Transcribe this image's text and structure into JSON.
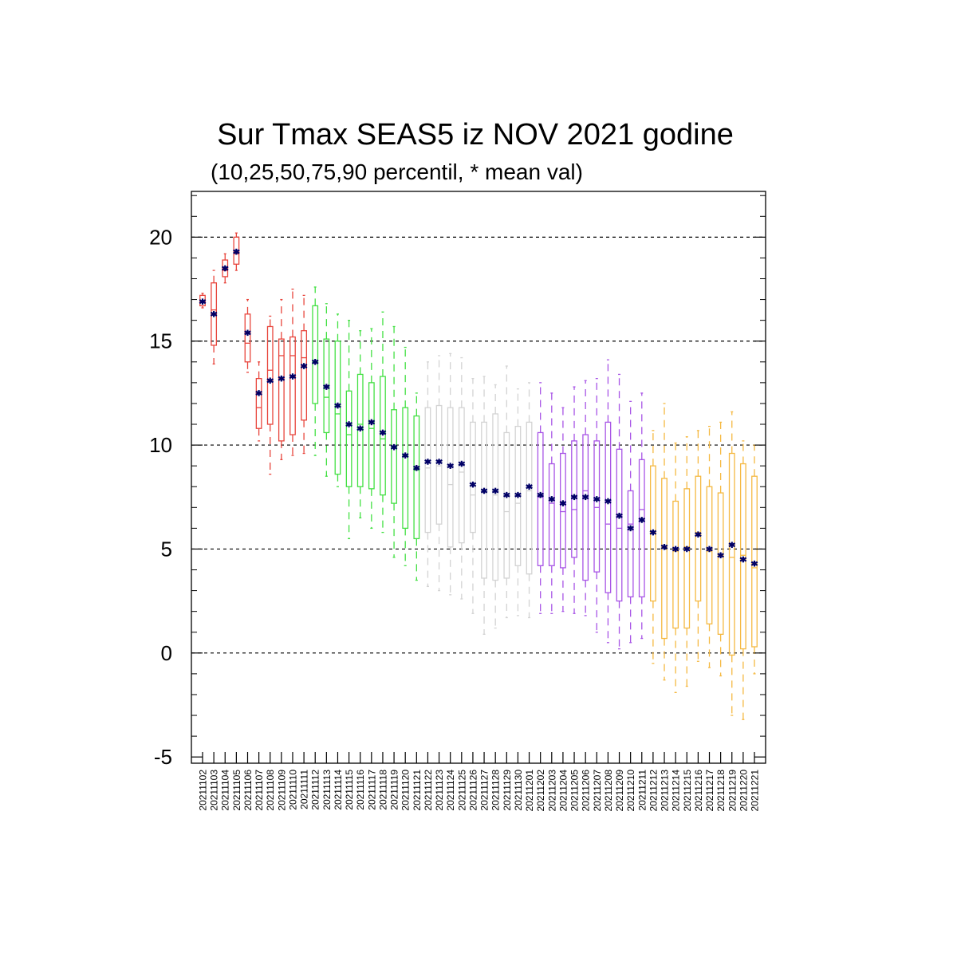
{
  "chart_data": {
    "type": "box",
    "title": "Sur Tmax SEAS5 iz NOV 2021 godine",
    "subtitle": "(10,25,50,75,90 percentil, * mean val)",
    "ylim": [
      -5.3,
      22.2
    ],
    "yticks": [
      20,
      15,
      10,
      5,
      0,
      -5
    ],
    "grid": "horizontal dashed at major ticks",
    "month_colors": {
      "2021-11-02..2021-11-11": "#e8453c",
      "2021-11-12..2021-11-21": "#43e043",
      "2021-11-22..2021-12-01": "#d3d3d3",
      "2021-12-02..2021-12-11": "#a855e6",
      "2021-12-12..2021-12-21": "#f5b942"
    },
    "mean_marker_color": "#000066",
    "categories": [
      "20211102",
      "20211103",
      "20211104",
      "20211105",
      "20211106",
      "20211107",
      "20211108",
      "20211109",
      "20211110",
      "20211111",
      "20211112",
      "20211113",
      "20211114",
      "20211115",
      "20211116",
      "20211117",
      "20211118",
      "20211119",
      "20211120",
      "20211121",
      "20211122",
      "20211123",
      "20211124",
      "20211125",
      "20211126",
      "20211127",
      "20211128",
      "20211129",
      "20211130",
      "20211201",
      "20211202",
      "20211203",
      "20211204",
      "20211205",
      "20211206",
      "20211207",
      "20211208",
      "20211209",
      "20211210",
      "20211211",
      "20211212",
      "20211213",
      "20211214",
      "20211215",
      "20211216",
      "20211217",
      "20211218",
      "20211219",
      "20211220",
      "20211221"
    ],
    "p10": [
      16.6,
      13.9,
      17.8,
      18.4,
      13.5,
      10.2,
      8.6,
      9.3,
      9.5,
      9.6,
      9.5,
      8.5,
      8.0,
      5.5,
      6.5,
      6.0,
      5.8,
      4.6,
      4.2,
      3.5,
      3.2,
      3.0,
      2.8,
      2.6,
      1.9,
      0.9,
      1.2,
      1.7,
      1.8,
      1.7,
      1.9,
      1.9,
      2.0,
      1.9,
      1.8,
      1.0,
      0.5,
      0.2,
      0.5,
      0.7,
      -0.5,
      -1.3,
      -1.9,
      -1.6,
      -0.4,
      -0.7,
      -1.1,
      -3.0,
      -3.2,
      -1.0
    ],
    "p25": [
      16.7,
      14.8,
      18.1,
      18.7,
      14.0,
      10.8,
      11.0,
      10.2,
      10.5,
      11.2,
      12.0,
      10.6,
      8.6,
      8.0,
      8.0,
      7.9,
      7.6,
      7.2,
      6.0,
      5.5,
      5.8,
      6.2,
      5.1,
      5.3,
      5.8,
      3.6,
      3.5,
      3.6,
      4.2,
      3.8,
      4.2,
      4.2,
      4.1,
      4.6,
      3.5,
      3.9,
      2.9,
      2.5,
      2.7,
      2.7,
      2.5,
      0.7,
      1.2,
      1.2,
      2.5,
      1.4,
      0.9,
      -0.1,
      0.2,
      0.3
    ],
    "p50": [
      16.9,
      16.5,
      18.4,
      19.2,
      14.9,
      11.8,
      13.6,
      14.3,
      14.3,
      14.2,
      14.0,
      12.3,
      11.5,
      10.5,
      11.0,
      10.8,
      10.3,
      9.9,
      9.5,
      8.8,
      8.9,
      9.0,
      8.1,
      8.7,
      7.6,
      7.7,
      7.6,
      6.8,
      7.2,
      7.8,
      7.5,
      7.2,
      6.8,
      6.9,
      7.8,
      7.0,
      6.2,
      6.0,
      6.2,
      6.9,
      5.8,
      5.1,
      4.9,
      5.1,
      5.8,
      4.9,
      4.7,
      4.6,
      4.7,
      4.1
    ],
    "p75": [
      17.2,
      17.8,
      18.9,
      20.0,
      16.3,
      13.2,
      15.7,
      15.1,
      15.2,
      15.5,
      16.7,
      15.1,
      15.0,
      12.6,
      13.4,
      13.0,
      13.3,
      11.7,
      11.8,
      11.4,
      11.8,
      11.9,
      11.8,
      11.8,
      11.1,
      11.1,
      11.5,
      10.6,
      10.9,
      11.1,
      10.6,
      9.1,
      9.6,
      10.2,
      10.5,
      10.2,
      11.1,
      9.8,
      7.8,
      9.3,
      9.0,
      8.4,
      7.3,
      7.9,
      8.5,
      8.0,
      7.7,
      9.6,
      9.1,
      8.5
    ],
    "p90": [
      17.3,
      18.4,
      19.2,
      20.2,
      17.0,
      14.0,
      16.2,
      17.0,
      17.5,
      17.2,
      17.6,
      16.8,
      16.3,
      16.0,
      15.5,
      15.6,
      16.4,
      15.7,
      14.7,
      12.5,
      14.0,
      14.3,
      14.4,
      14.2,
      13.2,
      13.3,
      12.9,
      13.8,
      12.7,
      13.0,
      13.0,
      12.5,
      11.8,
      12.8,
      13.1,
      13.2,
      14.1,
      13.4,
      12.1,
      12.5,
      10.7,
      12.0,
      10.1,
      10.4,
      10.7,
      10.9,
      11.1,
      11.6,
      10.2,
      10.0
    ],
    "mean": [
      16.9,
      16.3,
      18.5,
      19.3,
      15.4,
      12.5,
      13.1,
      13.2,
      13.3,
      13.8,
      14.0,
      12.8,
      11.9,
      11.0,
      10.8,
      11.1,
      10.6,
      9.9,
      9.5,
      8.9,
      9.2,
      9.2,
      9.0,
      9.1,
      8.1,
      7.8,
      7.8,
      7.6,
      7.6,
      8.0,
      7.6,
      7.4,
      7.2,
      7.5,
      7.5,
      7.4,
      7.3,
      6.6,
      6.0,
      6.4,
      5.8,
      5.1,
      5.0,
      5.0,
      5.7,
      5.0,
      4.7,
      5.2,
      4.5,
      4.3
    ]
  }
}
